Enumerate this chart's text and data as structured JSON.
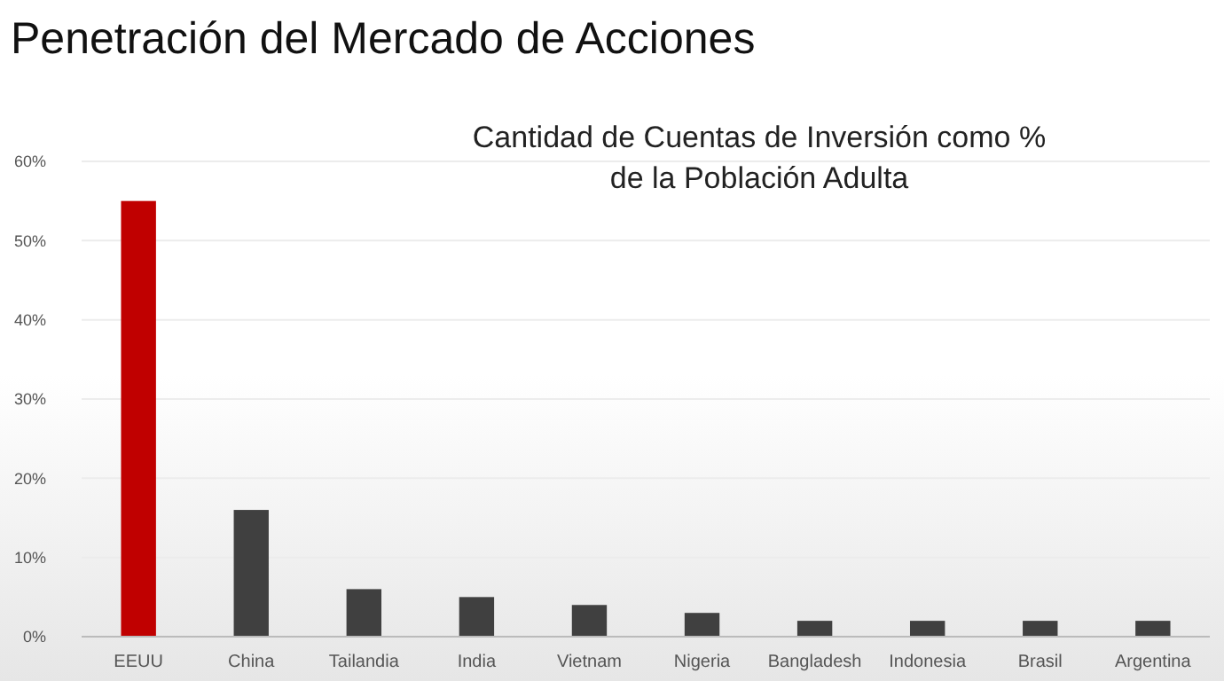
{
  "chart_data": {
    "type": "bar",
    "title": "Penetración del Mercado de Acciones",
    "subtitle": "Cantidad de Cuentas de Inversión como % de la Población Adulta",
    "categories": [
      "EEUU",
      "China",
      "Tailandia",
      "India",
      "Vietnam",
      "Nigeria",
      "Bangladesh",
      "Indonesia",
      "Brasil",
      "Argentina"
    ],
    "values": [
      55,
      16,
      6,
      5,
      4,
      3,
      2,
      2,
      2,
      2
    ],
    "colors": [
      "#c00000",
      "#404040",
      "#404040",
      "#404040",
      "#404040",
      "#404040",
      "#404040",
      "#404040",
      "#404040",
      "#404040"
    ],
    "ylim": [
      0,
      60
    ],
    "yticks": [
      {
        "value": 0,
        "label": "0%"
      },
      {
        "value": 10,
        "label": "10%"
      },
      {
        "value": 20,
        "label": "20%"
      },
      {
        "value": 30,
        "label": "30%"
      },
      {
        "value": 40,
        "label": "40%"
      },
      {
        "value": 50,
        "label": "50%"
      },
      {
        "value": 60,
        "label": "60%"
      }
    ],
    "grid": "y"
  }
}
